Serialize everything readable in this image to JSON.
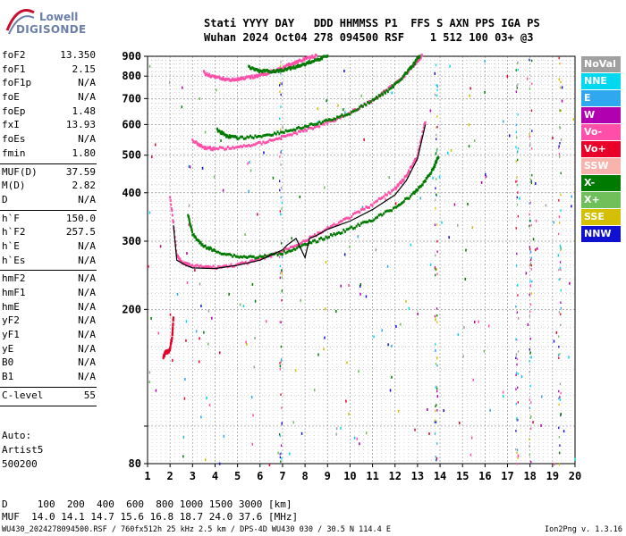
{
  "logo": {
    "line1": "Lowell",
    "line2": "DIGISONDE"
  },
  "header": {
    "line1": "Stati YYYY DAY   DDD HHMMSS P1  FFS S AXN PPS IGA PS",
    "line2": "Wuhan 2024 Oct04 278 094500 RSF    1 512 100 03+ @3"
  },
  "parameters": [
    {
      "label": "foF2",
      "value": "13.350"
    },
    {
      "label": "foF1",
      "value": "2.15"
    },
    {
      "label": "foF1p",
      "value": "N/A"
    },
    {
      "label": "foE",
      "value": "N/A"
    },
    {
      "label": "foEp",
      "value": "1.48"
    },
    {
      "label": "fxI",
      "value": "13.93"
    },
    {
      "label": "foEs",
      "value": "N/A"
    },
    {
      "label": "fmin",
      "value": "1.80"
    },
    {
      "sep": true
    },
    {
      "label": "MUF(D)",
      "value": "37.59"
    },
    {
      "label": "M(D)",
      "value": "2.82"
    },
    {
      "label": "D",
      "value": "N/A"
    },
    {
      "sep": true
    },
    {
      "label": "h`F",
      "value": "150.0"
    },
    {
      "label": "h`F2",
      "value": "257.5"
    },
    {
      "label": "h`E",
      "value": "N/A"
    },
    {
      "label": "h`Es",
      "value": "N/A"
    },
    {
      "sep": true
    },
    {
      "label": "hmF2",
      "value": "N/A"
    },
    {
      "label": "hmF1",
      "value": "N/A"
    },
    {
      "label": "hmE",
      "value": "N/A"
    },
    {
      "label": "yF2",
      "value": "N/A"
    },
    {
      "label": "yF1",
      "value": "N/A"
    },
    {
      "label": "yE",
      "value": "N/A"
    },
    {
      "label": "B0",
      "value": "N/A"
    },
    {
      "label": "B1",
      "value": "N/A"
    },
    {
      "sep": true
    },
    {
      "label": "C-level",
      "value": "55"
    },
    {
      "sep": true
    }
  ],
  "auto": {
    "line1": "Auto:",
    "line2": "Artist5",
    "line3": "500200"
  },
  "legend": [
    {
      "label": "NoVal",
      "color": "#a0a0a0"
    },
    {
      "label": "NNE",
      "color": "#00d8f0"
    },
    {
      "label": "E",
      "color": "#30a8f0"
    },
    {
      "label": "W",
      "color": "#b000b0"
    },
    {
      "label": "Vo-",
      "color": "#ff4fa8"
    },
    {
      "label": "Vo+",
      "color": "#e8002a"
    },
    {
      "label": "SSW",
      "color": "#f7b3ac"
    },
    {
      "label": "X-",
      "color": "#007a00"
    },
    {
      "label": "X+",
      "color": "#6fbf5a"
    },
    {
      "label": "SSE",
      "color": "#d4c000"
    },
    {
      "label": "NNW",
      "color": "#1010d0"
    }
  ],
  "dmuf": {
    "d_label": "D",
    "d_values": "100  200  400  600  800 1000 1500 3000 [km]",
    "muf_label": "MUF",
    "muf_values": "14.0 14.1 14.7 15.6 16.8 18.7 24.0 37.6 [MHz]"
  },
  "footer": {
    "text": "WU430_2024278094500.RSF / 760fx512h 25 kHz 2.5 km / DPS-4D WU430 030 / 30.5 N 114.4 E",
    "version": "Ion2Png v. 1.3.16"
  },
  "chart_data": {
    "type": "scatter",
    "title": "",
    "xlabel": "",
    "ylabel": "",
    "xlim": [
      1,
      20
    ],
    "ylim": [
      80,
      900
    ],
    "y_scale": "log",
    "xticks": [
      "1",
      "2",
      "3",
      "4",
      "5",
      "6",
      "7",
      "8",
      "9",
      "10",
      "11",
      "12",
      "13",
      "14",
      "15",
      "16",
      "17",
      "18",
      "19",
      "20"
    ],
    "yticks": [
      80,
      100,
      200,
      300,
      400,
      500,
      600,
      700,
      800,
      900
    ],
    "ytick_labels": [
      "80",
      "",
      "200",
      "300",
      "400",
      "500",
      "600",
      "700",
      "800",
      "900"
    ],
    "grid": true,
    "legend_position": "right",
    "series": [
      {
        "name": "Vo-",
        "color": "#ff4fa8",
        "x": [
          2.0,
          2.3,
          2.6,
          3.0,
          4.0,
          5.0,
          6.0,
          7.0,
          8.0,
          9.0,
          10.0,
          11.0,
          12.0,
          12.5,
          13.0,
          13.35
        ],
        "y": [
          390,
          275,
          262,
          258,
          256,
          260,
          268,
          282,
          300,
          322,
          345,
          372,
          408,
          440,
          495,
          610
        ]
      },
      {
        "name": "X-",
        "color": "#007a00",
        "x": [
          2.8,
          3.0,
          3.4,
          4.0,
          5.0,
          6.0,
          7.0,
          8.0,
          9.0,
          10.0,
          11.0,
          12.0,
          12.8,
          13.3,
          13.7,
          13.93
        ],
        "y": [
          350,
          312,
          293,
          282,
          273,
          272,
          279,
          292,
          307,
          322,
          340,
          365,
          395,
          425,
          460,
          495
        ]
      },
      {
        "name": "Vo- 2F",
        "color": "#ff4fa8",
        "x": [
          3.0,
          3.5,
          4.0,
          5.0,
          6.0,
          7.0,
          8.0,
          9.0,
          10.0,
          11.0,
          12.0,
          12.5,
          12.9,
          13.2
        ],
        "y": [
          545,
          522,
          518,
          522,
          535,
          555,
          578,
          605,
          640,
          690,
          760,
          810,
          860,
          900
        ]
      },
      {
        "name": "X- 2F",
        "color": "#007a00",
        "x": [
          4.1,
          4.5,
          5.0,
          6.0,
          7.0,
          8.0,
          9.0,
          10.0,
          11.0,
          11.8,
          12.4,
          12.8,
          13.1
        ],
        "y": [
          580,
          560,
          552,
          558,
          572,
          590,
          612,
          640,
          690,
          740,
          800,
          850,
          900
        ]
      },
      {
        "name": "Vo- 3F",
        "color": "#ff4fa8",
        "x": [
          3.5,
          4.0,
          4.5,
          5.0,
          5.5,
          6.0,
          6.5,
          7.0,
          7.5,
          8.0,
          8.5
        ],
        "y": [
          815,
          792,
          782,
          782,
          790,
          802,
          818,
          838,
          862,
          882,
          900
        ]
      },
      {
        "name": "X- 3F",
        "color": "#007a00",
        "x": [
          5.5,
          6.0,
          6.5,
          7.0,
          7.5,
          8.0,
          8.5,
          9.0
        ],
        "y": [
          840,
          822,
          820,
          826,
          840,
          858,
          878,
          900
        ]
      },
      {
        "name": "Es",
        "color": "#e8002a",
        "x": [
          1.7,
          1.8,
          1.9,
          2.0,
          2.1,
          2.15
        ],
        "y": [
          150,
          155,
          155,
          158,
          170,
          190
        ]
      }
    ],
    "profile_line": {
      "color": "#000000",
      "x": [
        2.15,
        2.3,
        2.7,
        3.0,
        4.0,
        5.0,
        6.0,
        7.0,
        7.2,
        7.6,
        8.0,
        8.2,
        8.5,
        9.0,
        10.0,
        11.0,
        12.0,
        12.5,
        13.0,
        13.35
      ],
      "y": [
        330,
        268,
        260,
        256,
        255,
        260,
        268,
        285,
        293,
        305,
        272,
        305,
        310,
        322,
        338,
        362,
        395,
        430,
        490,
        600
      ]
    }
  }
}
